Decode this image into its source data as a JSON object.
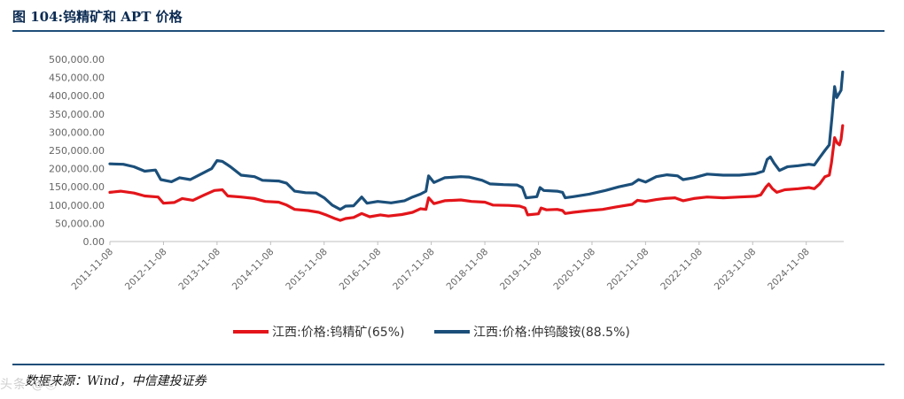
{
  "header": {
    "title": "图 104:钨精矿和 APT 价格"
  },
  "footer": {
    "source": "数据来源：Wind，中信建投证券",
    "watermark": "头条 @Ⓒ"
  },
  "chart_data": {
    "type": "line",
    "title": "图 104:钨精矿和 APT 价格",
    "xlabel": "",
    "ylabel": "",
    "ylim": [
      0,
      500000
    ],
    "yticks": [
      "0.00",
      "50,000.00",
      "100,000.00",
      "150,000.00",
      "200,000.00",
      "250,000.00",
      "300,000.00",
      "350,000.00",
      "400,000.00",
      "450,000.00",
      "500,000.00"
    ],
    "xticks": [
      "2011-11-08",
      "2012-11-08",
      "2013-11-08",
      "2014-11-08",
      "2015-11-08",
      "2016-11-08",
      "2017-11-08",
      "2018-11-08",
      "2019-11-08",
      "2020-11-08",
      "2021-11-08",
      "2022-11-08",
      "2023-11-08",
      "2024-11-08"
    ],
    "x_range": [
      2011.85,
      2025.55
    ],
    "legend_position": "bottom",
    "series": [
      {
        "name": "江西:价格:钨精矿(65%)",
        "color": "#e3151a",
        "points": [
          [
            2011.85,
            135000
          ],
          [
            2012.05,
            138000
          ],
          [
            2012.3,
            133000
          ],
          [
            2012.5,
            125000
          ],
          [
            2012.75,
            122000
          ],
          [
            2012.85,
            105000
          ],
          [
            2013.05,
            107000
          ],
          [
            2013.2,
            118000
          ],
          [
            2013.4,
            113000
          ],
          [
            2013.6,
            127000
          ],
          [
            2013.8,
            140000
          ],
          [
            2013.95,
            142000
          ],
          [
            2014.05,
            125000
          ],
          [
            2014.3,
            122000
          ],
          [
            2014.55,
            118000
          ],
          [
            2014.75,
            110000
          ],
          [
            2015.0,
            108000
          ],
          [
            2015.15,
            100000
          ],
          [
            2015.3,
            88000
          ],
          [
            2015.55,
            85000
          ],
          [
            2015.75,
            80000
          ],
          [
            2015.9,
            72000
          ],
          [
            2016.05,
            63000
          ],
          [
            2016.15,
            58000
          ],
          [
            2016.25,
            63000
          ],
          [
            2016.4,
            66000
          ],
          [
            2016.55,
            77000
          ],
          [
            2016.7,
            68000
          ],
          [
            2016.9,
            73000
          ],
          [
            2017.05,
            70000
          ],
          [
            2017.3,
            74000
          ],
          [
            2017.5,
            80000
          ],
          [
            2017.65,
            90000
          ],
          [
            2017.75,
            88000
          ],
          [
            2017.8,
            120000
          ],
          [
            2017.9,
            104000
          ],
          [
            2018.1,
            112000
          ],
          [
            2018.4,
            114000
          ],
          [
            2018.6,
            110000
          ],
          [
            2018.85,
            108000
          ],
          [
            2019.0,
            100000
          ],
          [
            2019.3,
            99000
          ],
          [
            2019.5,
            97000
          ],
          [
            2019.6,
            92000
          ],
          [
            2019.65,
            73000
          ],
          [
            2019.85,
            76000
          ],
          [
            2019.9,
            92000
          ],
          [
            2020.0,
            87000
          ],
          [
            2020.2,
            88000
          ],
          [
            2020.3,
            85000
          ],
          [
            2020.35,
            77000
          ],
          [
            2020.5,
            80000
          ],
          [
            2020.8,
            85000
          ],
          [
            2021.05,
            88000
          ],
          [
            2021.3,
            95000
          ],
          [
            2021.6,
            102000
          ],
          [
            2021.7,
            113000
          ],
          [
            2021.85,
            110000
          ],
          [
            2022.05,
            115000
          ],
          [
            2022.2,
            118000
          ],
          [
            2022.4,
            120000
          ],
          [
            2022.55,
            112000
          ],
          [
            2022.75,
            118000
          ],
          [
            2023.0,
            122000
          ],
          [
            2023.3,
            120000
          ],
          [
            2023.6,
            122000
          ],
          [
            2023.9,
            124000
          ],
          [
            2024.0,
            128000
          ],
          [
            2024.1,
            150000
          ],
          [
            2024.15,
            158000
          ],
          [
            2024.22,
            145000
          ],
          [
            2024.3,
            135000
          ],
          [
            2024.45,
            142000
          ],
          [
            2024.7,
            145000
          ],
          [
            2024.9,
            148000
          ],
          [
            2025.0,
            145000
          ],
          [
            2025.1,
            158000
          ],
          [
            2025.2,
            178000
          ],
          [
            2025.28,
            182000
          ],
          [
            2025.32,
            215000
          ],
          [
            2025.38,
            285000
          ],
          [
            2025.43,
            270000
          ],
          [
            2025.47,
            265000
          ],
          [
            2025.5,
            280000
          ],
          [
            2025.53,
            318000
          ]
        ]
      },
      {
        "name": "江西:价格:仲钨酸铵(88.5%)",
        "color": "#1b4f7a",
        "points": [
          [
            2011.85,
            213000
          ],
          [
            2012.1,
            212000
          ],
          [
            2012.3,
            205000
          ],
          [
            2012.5,
            193000
          ],
          [
            2012.7,
            196000
          ],
          [
            2012.8,
            170000
          ],
          [
            2013.0,
            164000
          ],
          [
            2013.15,
            175000
          ],
          [
            2013.35,
            170000
          ],
          [
            2013.55,
            185000
          ],
          [
            2013.75,
            200000
          ],
          [
            2013.85,
            222000
          ],
          [
            2013.95,
            220000
          ],
          [
            2014.1,
            205000
          ],
          [
            2014.3,
            182000
          ],
          [
            2014.55,
            178000
          ],
          [
            2014.7,
            168000
          ],
          [
            2015.0,
            166000
          ],
          [
            2015.15,
            160000
          ],
          [
            2015.3,
            138000
          ],
          [
            2015.5,
            134000
          ],
          [
            2015.7,
            133000
          ],
          [
            2015.85,
            120000
          ],
          [
            2016.0,
            100000
          ],
          [
            2016.15,
            88000
          ],
          [
            2016.25,
            97000
          ],
          [
            2016.4,
            98000
          ],
          [
            2016.55,
            122000
          ],
          [
            2016.65,
            105000
          ],
          [
            2016.85,
            110000
          ],
          [
            2017.1,
            106000
          ],
          [
            2017.35,
            112000
          ],
          [
            2017.5,
            122000
          ],
          [
            2017.65,
            130000
          ],
          [
            2017.75,
            138000
          ],
          [
            2017.8,
            180000
          ],
          [
            2017.9,
            162000
          ],
          [
            2018.1,
            175000
          ],
          [
            2018.4,
            178000
          ],
          [
            2018.55,
            177000
          ],
          [
            2018.8,
            168000
          ],
          [
            2018.95,
            158000
          ],
          [
            2019.2,
            156000
          ],
          [
            2019.45,
            155000
          ],
          [
            2019.55,
            148000
          ],
          [
            2019.62,
            120000
          ],
          [
            2019.82,
            123000
          ],
          [
            2019.88,
            148000
          ],
          [
            2019.95,
            140000
          ],
          [
            2020.2,
            138000
          ],
          [
            2020.3,
            135000
          ],
          [
            2020.35,
            120000
          ],
          [
            2020.5,
            123000
          ],
          [
            2020.8,
            130000
          ],
          [
            2021.1,
            140000
          ],
          [
            2021.35,
            150000
          ],
          [
            2021.6,
            158000
          ],
          [
            2021.72,
            170000
          ],
          [
            2021.85,
            163000
          ],
          [
            2022.05,
            178000
          ],
          [
            2022.25,
            183000
          ],
          [
            2022.45,
            180000
          ],
          [
            2022.55,
            170000
          ],
          [
            2022.75,
            175000
          ],
          [
            2023.0,
            185000
          ],
          [
            2023.3,
            182000
          ],
          [
            2023.6,
            182000
          ],
          [
            2023.9,
            186000
          ],
          [
            2024.05,
            193000
          ],
          [
            2024.12,
            225000
          ],
          [
            2024.18,
            232000
          ],
          [
            2024.25,
            215000
          ],
          [
            2024.35,
            195000
          ],
          [
            2024.5,
            205000
          ],
          [
            2024.7,
            208000
          ],
          [
            2024.9,
            212000
          ],
          [
            2025.0,
            210000
          ],
          [
            2025.1,
            230000
          ],
          [
            2025.2,
            250000
          ],
          [
            2025.28,
            265000
          ],
          [
            2025.33,
            340000
          ],
          [
            2025.38,
            425000
          ],
          [
            2025.42,
            395000
          ],
          [
            2025.46,
            405000
          ],
          [
            2025.5,
            415000
          ],
          [
            2025.53,
            465000
          ]
        ]
      }
    ]
  }
}
